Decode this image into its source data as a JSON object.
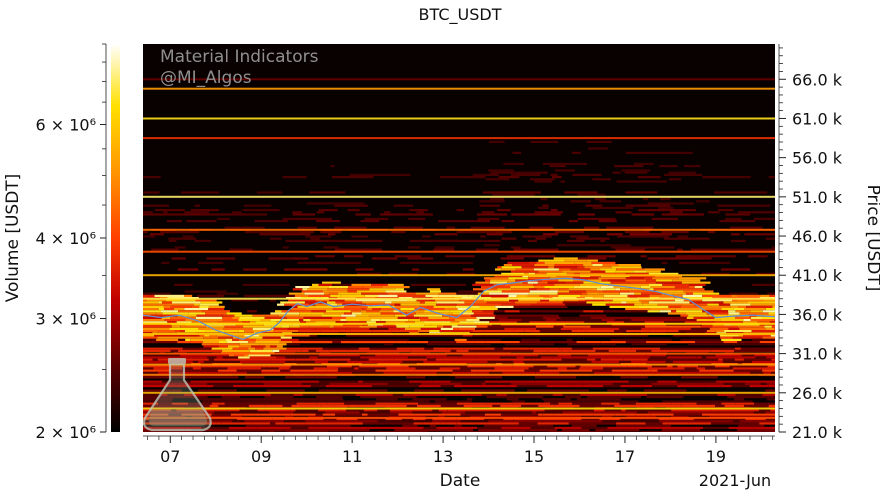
{
  "chart_data": {
    "type": "heatmap",
    "title": "BTC_USDT",
    "xlabel": "Date",
    "x_tick_labels": [
      "07",
      "09",
      "11",
      "13",
      "15",
      "17",
      "19"
    ],
    "x_tick_days": [
      7,
      9,
      11,
      13,
      15,
      17,
      19
    ],
    "x_secondary_label": "2021-Jun",
    "xlim_days": [
      6.4,
      20.3
    ],
    "ylabel_right": "Price [USDT]",
    "ylim_price": [
      21000,
      70500
    ],
    "price_tick_labels": [
      "21.0 k",
      "26.0 k",
      "31.0 k",
      "36.0 k",
      "41.0 k",
      "46.0 k",
      "51.0 k",
      "56.0 k",
      "61.0 k",
      "66.0 k"
    ],
    "price_ticks": [
      21000,
      26000,
      31000,
      36000,
      41000,
      46000,
      51000,
      56000,
      61000,
      66000
    ],
    "colorbar": {
      "label": "Volume [USDT]",
      "scale": "log",
      "range": [
        2000000,
        8000000
      ],
      "tick_labels": [
        "2 × 10⁶",
        "3 × 10⁶",
        "4 × 10⁶",
        "6 × 10⁶"
      ],
      "ticks": [
        2000000,
        3000000,
        4000000,
        6000000
      ],
      "colormap": [
        "#000000",
        "#5a0000",
        "#c00000",
        "#ff4000",
        "#ff9000",
        "#ffe000",
        "#ffffff"
      ]
    },
    "price_series": {
      "days": [
        6.4,
        6.8,
        7.2,
        7.6,
        8.0,
        8.3,
        8.6,
        8.9,
        9.2,
        9.4,
        9.6,
        9.8,
        10.0,
        10.3,
        10.6,
        11.0,
        11.4,
        11.8,
        12.2,
        12.5,
        12.9,
        13.3,
        13.6,
        13.9,
        14.2,
        14.5,
        14.9,
        15.3,
        15.7,
        16.1,
        16.5,
        16.9,
        17.3,
        17.7,
        18.1,
        18.4,
        18.7,
        19.0,
        19.4,
        19.8,
        20.3
      ],
      "price": [
        35900,
        35600,
        35900,
        35200,
        34000,
        33400,
        32800,
        33600,
        34000,
        35000,
        36500,
        37400,
        37000,
        37600,
        37000,
        37300,
        37100,
        37200,
        35900,
        36900,
        36100,
        35600,
        37000,
        39000,
        39800,
        40000,
        40300,
        40500,
        40600,
        40400,
        39900,
        39600,
        39300,
        38900,
        38300,
        37900,
        36700,
        35600,
        35800,
        35900,
        35700
      ]
    },
    "volume_profile": [
      {
        "price": 66000,
        "volume": 2600000
      },
      {
        "price": 64800,
        "volume": 5200000
      },
      {
        "price": 61000,
        "volume": 6500000
      },
      {
        "price": 58500,
        "volume": 3800000
      },
      {
        "price": 51000,
        "volume": 7000000
      },
      {
        "price": 46800,
        "volume": 4600000
      },
      {
        "price": 44000,
        "volume": 4200000
      },
      {
        "price": 41000,
        "volume": 5600000
      },
      {
        "price": 38000,
        "volume": 6800000
      },
      {
        "price": 34800,
        "volume": 6200000
      },
      {
        "price": 33500,
        "volume": 5800000
      },
      {
        "price": 31000,
        "volume": 4400000
      },
      {
        "price": 29600,
        "volume": 5200000
      },
      {
        "price": 28300,
        "volume": 4800000
      },
      {
        "price": 26000,
        "volume": 5600000
      },
      {
        "price": 24000,
        "volume": 6400000
      },
      {
        "price": 22800,
        "volume": 4200000
      }
    ]
  },
  "watermark": {
    "line1": "Material Indicators",
    "line2": "@MI_Algos",
    "logo_icon": "flask-icon"
  }
}
